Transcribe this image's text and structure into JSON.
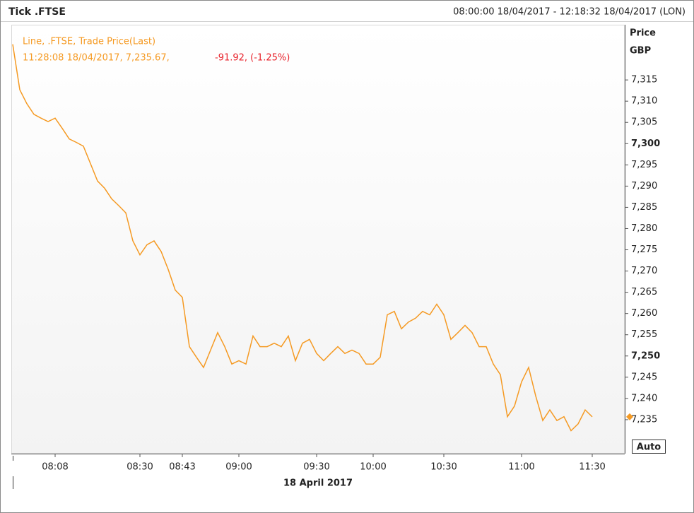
{
  "chart_data": {
    "type": "line",
    "title": "Tick .FTSE",
    "time_range": "08:00:00 18/04/2017 - 12:18:32 18/04/2017 (LON)",
    "legend_title": "Line, .FTSE, Trade Price(Last)",
    "legend_last": "11:28:08 18/04/2017, 7,235.67,",
    "legend_change": "-91.92, (-1.25%)",
    "y_label": "Price",
    "y_unit": "GBP",
    "x_label": "18 April 2017",
    "scale_button": "Auto",
    "categories": [
      null,
      null,
      null,
      null,
      null,
      null,
      "08:08",
      null,
      null,
      null,
      null,
      null,
      null,
      null,
      null,
      null,
      null,
      null,
      "08:30",
      null,
      null,
      null,
      null,
      null,
      "08:43",
      null,
      null,
      null,
      null,
      null,
      null,
      null,
      "09:00",
      null,
      null,
      null,
      null,
      null,
      null,
      null,
      null,
      null,
      null,
      "09:30",
      null,
      null,
      null,
      null,
      null,
      null,
      null,
      "10:00",
      null,
      null,
      null,
      null,
      null,
      null,
      null,
      null,
      null,
      "10:30",
      null,
      null,
      null,
      null,
      null,
      null,
      null,
      null,
      null,
      null,
      "11:00",
      null,
      null,
      null,
      null,
      null,
      null,
      null,
      null,
      null,
      "11:30"
    ],
    "series": [
      {
        "name": ".FTSE",
        "color": "#f59a23",
        "values": [
          7323.4,
          7312.7,
          7309.4,
          7306.9,
          7306,
          7305.2,
          7306,
          7303.6,
          7301.1,
          7300.3,
          7299.4,
          7295.3,
          7291.2,
          7289.5,
          7287,
          7285.4,
          7283.7,
          7277.1,
          7273.8,
          7276.2,
          7277.1,
          7274.6,
          7270.4,
          7265.5,
          7263.8,
          7252.2,
          7249.7,
          7247.3,
          7251.4,
          7255.5,
          7252.2,
          7248.1,
          7248.9,
          7248.1,
          7254.7,
          7252.2,
          7252.2,
          7253,
          7252.2,
          7254.7,
          7248.9,
          7253,
          7253.9,
          7250.6,
          7248.9,
          7250.6,
          7252.2,
          7250.6,
          7251.4,
          7250.6,
          7248.1,
          7248.1,
          7249.7,
          7259.7,
          7260.5,
          7256.4,
          7258,
          7258.9,
          7260.5,
          7259.7,
          7262.2,
          7259.7,
          7253.9,
          7255.5,
          7257.2,
          7255.5,
          7252.2,
          7252.2,
          7248.1,
          7245.6,
          7235.7,
          7238.2,
          7243.9,
          7247.3,
          7240.6,
          7234.8,
          7237.3,
          7234.8,
          7235.7,
          7232.4,
          7234,
          7237.3,
          7235.67
        ]
      }
    ],
    "change_color": "#e8222b",
    "ylim": [
      7227,
      7328
    ],
    "yticks": [
      {
        "value": 7315,
        "label": "7,315"
      },
      {
        "value": 7310,
        "label": "7,310"
      },
      {
        "value": 7305,
        "label": "7,305"
      },
      {
        "value": 7300,
        "label": "7,300"
      },
      {
        "value": 7295,
        "label": "7,295"
      },
      {
        "value": 7290,
        "label": "7,290"
      },
      {
        "value": 7285,
        "label": "7,285"
      },
      {
        "value": 7280,
        "label": "7,280"
      },
      {
        "value": 7275,
        "label": "7,275"
      },
      {
        "value": 7270,
        "label": "7,270"
      },
      {
        "value": 7265,
        "label": "7,265"
      },
      {
        "value": 7260,
        "label": "7,260"
      },
      {
        "value": 7255,
        "label": "7,255"
      },
      {
        "value": 7250,
        "label": "7,250"
      },
      {
        "value": 7245,
        "label": "7,245"
      },
      {
        "value": 7240,
        "label": "7,240"
      },
      {
        "value": 7235,
        "label": "7,235"
      }
    ]
  }
}
